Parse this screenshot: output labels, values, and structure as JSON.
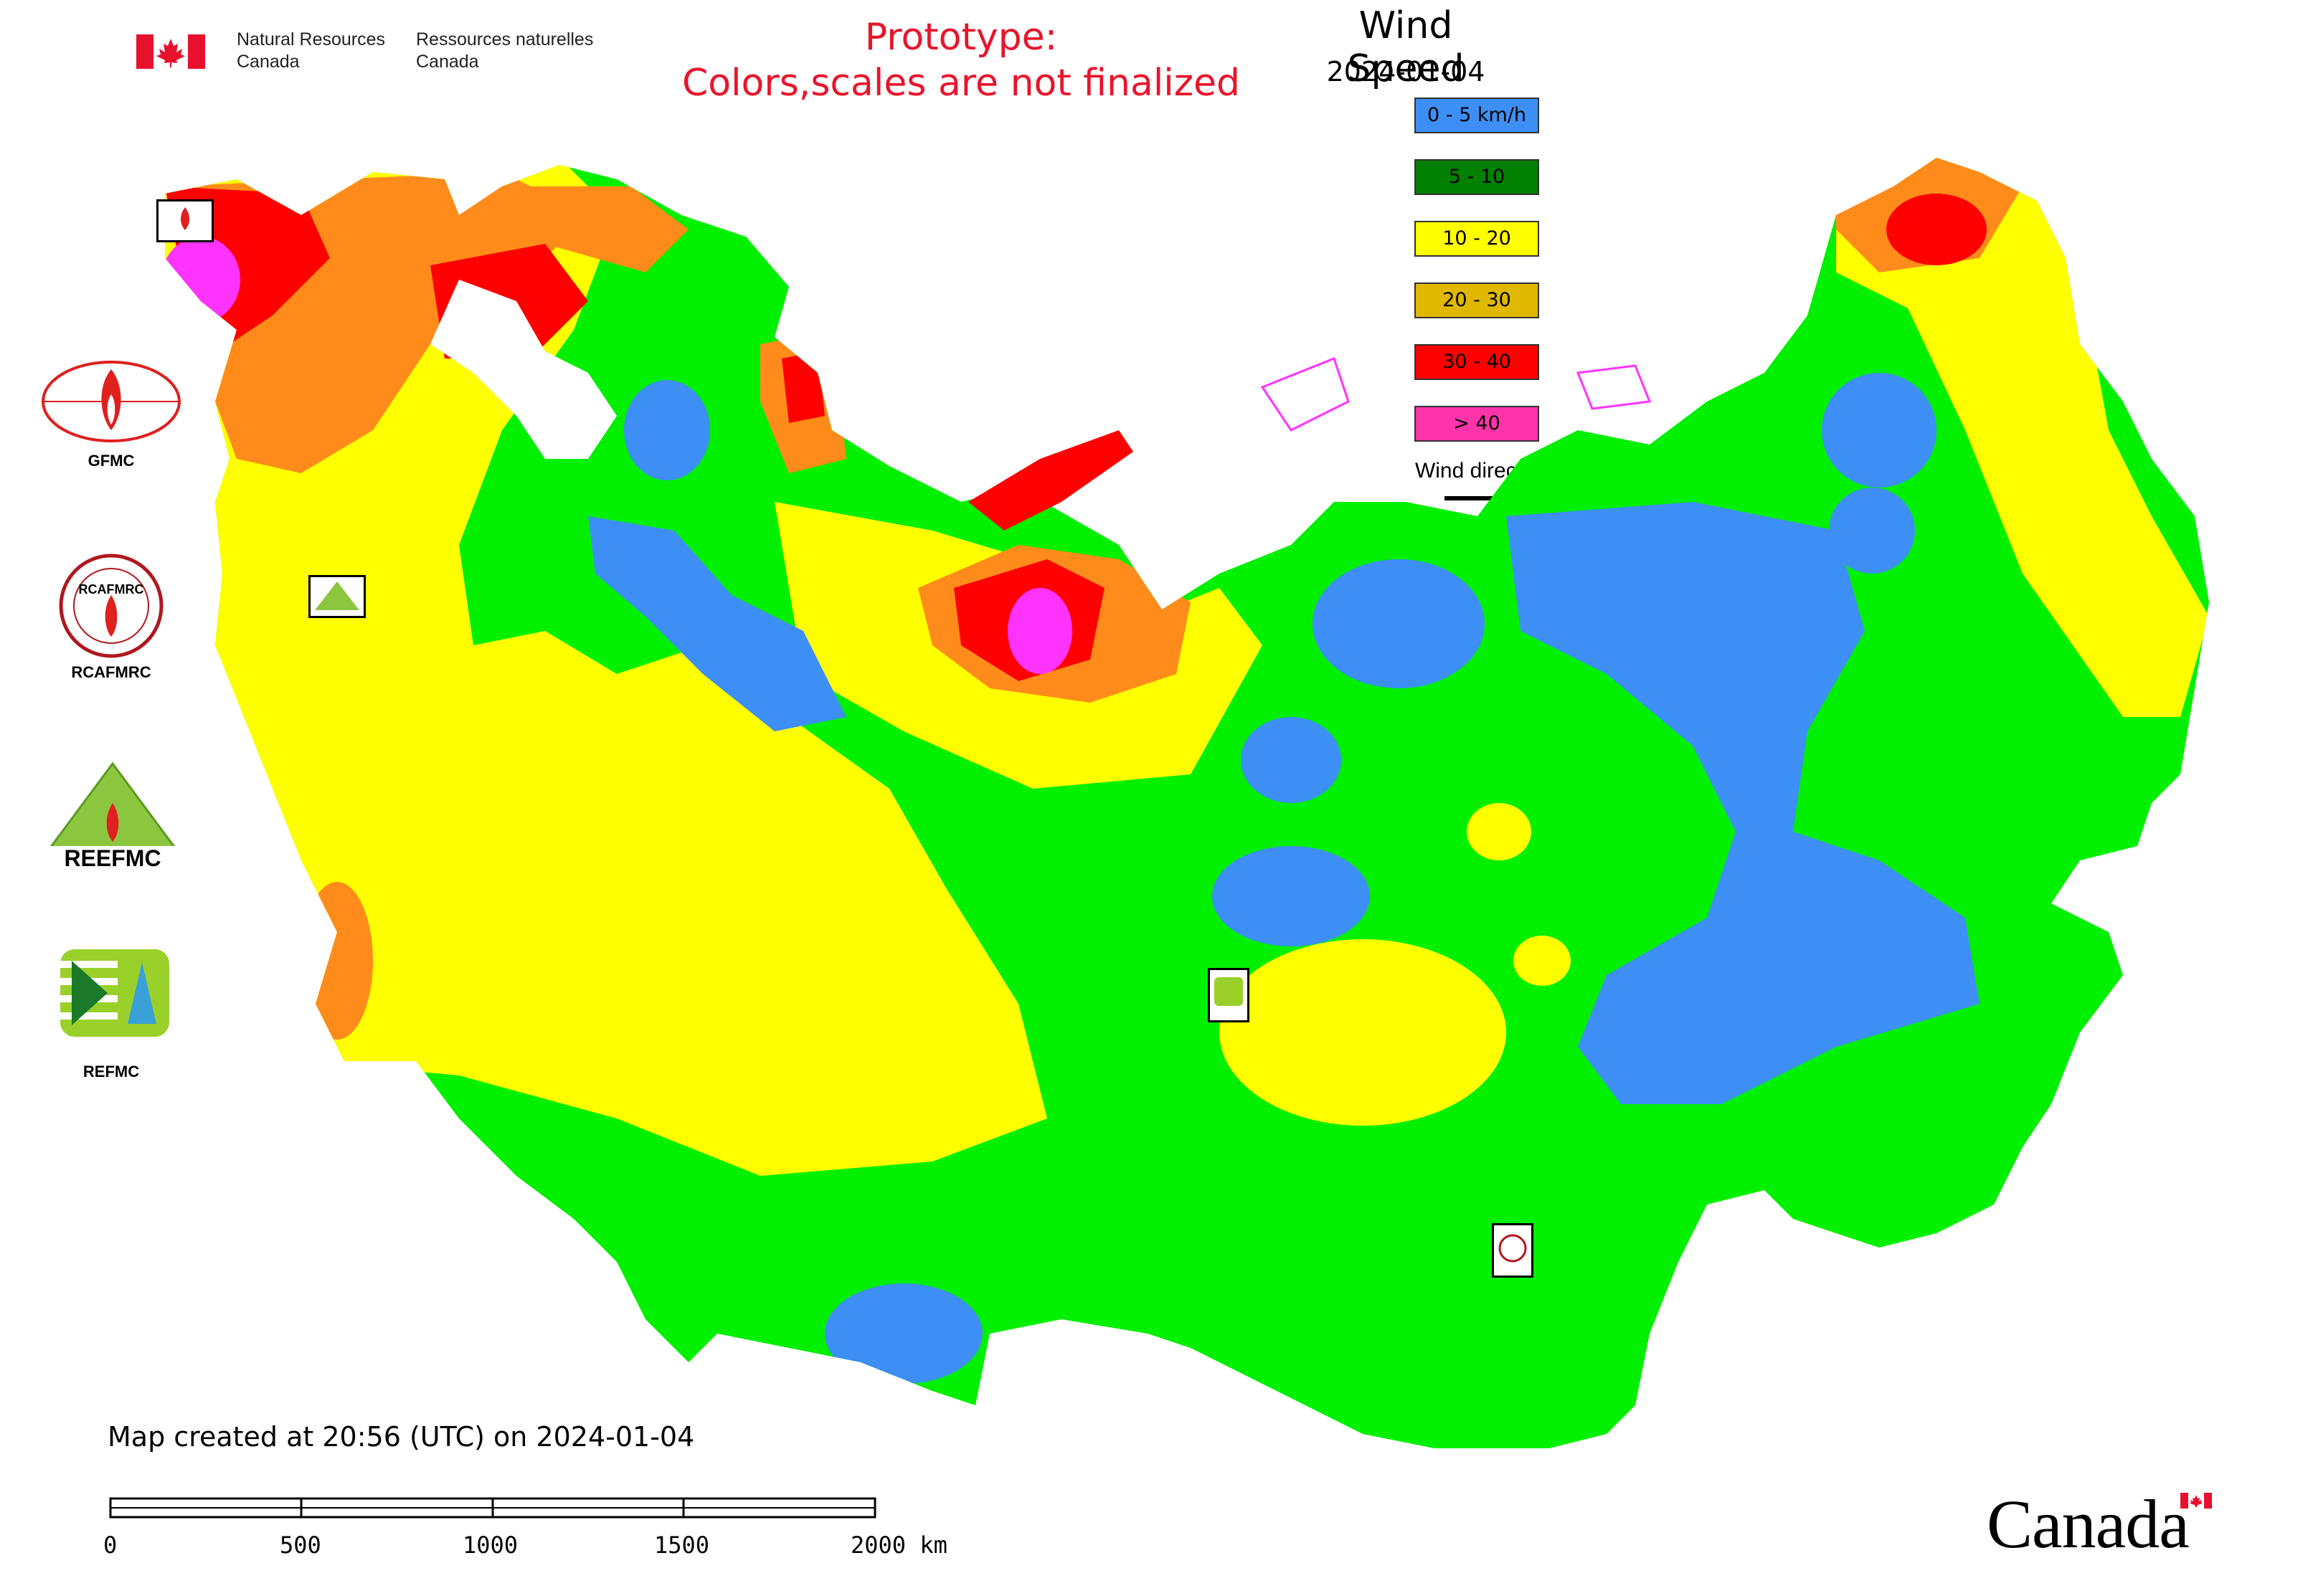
{
  "header": {
    "nrcan_en": [
      "Natural Resources",
      "Canada"
    ],
    "nrcan_fr": [
      "Ressources naturelles",
      "Canada"
    ],
    "prototype_line1": "Prototype:",
    "prototype_line2": "Colors,scales are not finalized"
  },
  "legend": {
    "title": "Wind Speed",
    "date": "2024-01-04",
    "items": [
      {
        "label": "0 - 5 km/h",
        "color": "#3d8ff5"
      },
      {
        "label": "5 - 10",
        "color": "#008000"
      },
      {
        "label": "10 - 20",
        "color": "#ffff00"
      },
      {
        "label": "20 - 30",
        "color": "#e0b800"
      },
      {
        "label": "30 - 40",
        "color": "#ff0000"
      },
      {
        "label": "> 40",
        "color": "#ff33aa"
      }
    ],
    "wind_direction": "Wind direction"
  },
  "colors": {
    "calm": "#3d8ff5",
    "light": "#00f000",
    "moderate": "#ffff00",
    "fresh": "#ff8c1a",
    "strong": "#ff0000",
    "extreme": "#ff33ff"
  },
  "organizations": [
    {
      "name": "GFMC",
      "icon": "gfmc-logo-icon"
    },
    {
      "name": "RCAFMRC",
      "icon": "rcafmrc-logo-icon"
    },
    {
      "name": "REEFMC",
      "icon": "reefmc-logo-icon"
    },
    {
      "name": "REFMC",
      "icon": "refmc-logo-icon"
    }
  ],
  "footer": {
    "created": "Map created at 20:56 (UTC) on 2024-01-04",
    "scale_labels": [
      "0",
      "500",
      "1000",
      "1500",
      "2000 km"
    ],
    "wordmark": "Canada"
  }
}
